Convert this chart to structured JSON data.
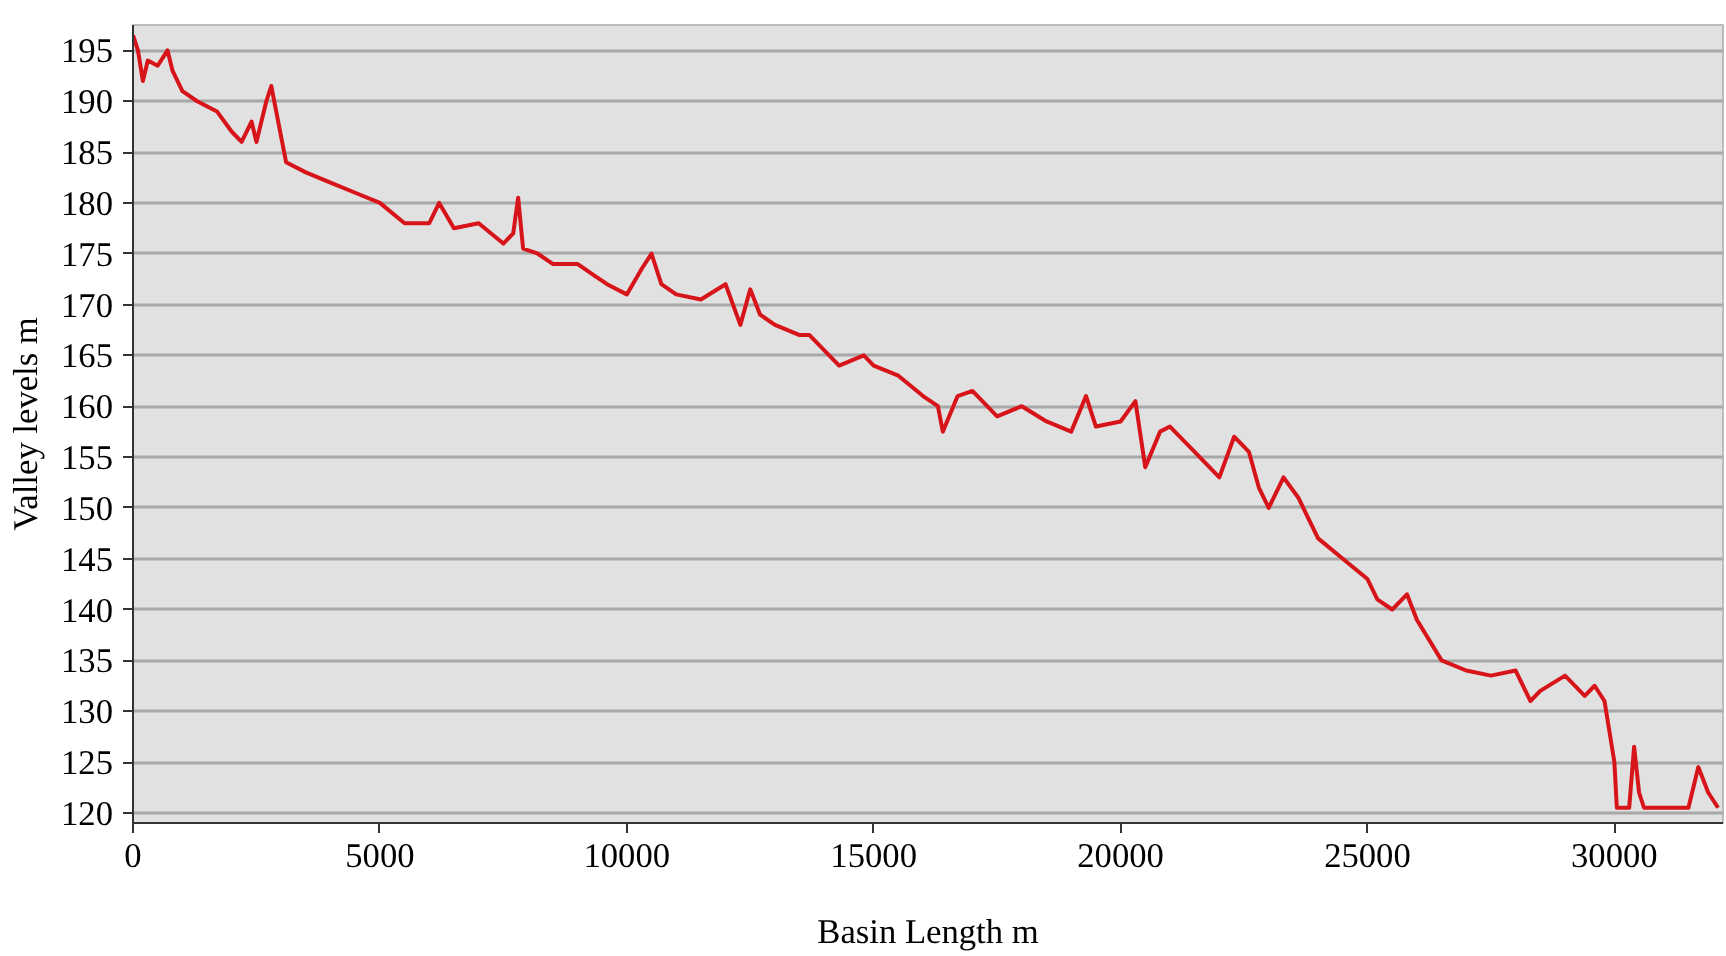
{
  "chart_data": {
    "type": "line",
    "xlabel": "Basin Length m",
    "ylabel": "Valley levels m",
    "xlim": [
      0,
      32200
    ],
    "ylim": [
      119,
      197.5
    ],
    "xticks": [
      0,
      5000,
      10000,
      15000,
      20000,
      25000,
      30000
    ],
    "yticks": [
      120,
      125,
      130,
      135,
      140,
      145,
      150,
      155,
      160,
      165,
      170,
      175,
      180,
      185,
      190,
      195
    ],
    "grid": "y",
    "marker": "none",
    "line_style": "solid",
    "x": [
      0,
      100,
      200,
      300,
      500,
      700,
      800,
      1000,
      1300,
      1700,
      2000,
      2200,
      2400,
      2500,
      2700,
      2800,
      2900,
      3100,
      3500,
      4000,
      4500,
      5000,
      5500,
      6000,
      6200,
      6500,
      7000,
      7500,
      7700,
      7800,
      7900,
      8200,
      8500,
      9000,
      9300,
      9600,
      10000,
      10300,
      10500,
      10700,
      11000,
      11500,
      12000,
      12300,
      12500,
      12700,
      13000,
      13500,
      13700,
      14000,
      14300,
      14800,
      15000,
      15500,
      16000,
      16300,
      16400,
      16700,
      17000,
      17500,
      18000,
      18500,
      19000,
      19300,
      19500,
      20000,
      20300,
      20500,
      20800,
      21000,
      21500,
      22000,
      22300,
      22600,
      22800,
      23000,
      23300,
      23600,
      23800,
      24000,
      24500,
      25000,
      25200,
      25500,
      25800,
      26000,
      26500,
      27000,
      27500,
      28000,
      28300,
      28500,
      29000,
      29400,
      29600,
      29800,
      30000,
      30050,
      30300,
      30400,
      30500,
      30600,
      31500,
      31700,
      31900,
      32100
    ],
    "series": [
      {
        "color": "#d7141a",
        "values": [
          196.5,
          195,
          192,
          194,
          193.5,
          195,
          193,
          191,
          190,
          189,
          187,
          186,
          188,
          186,
          190,
          191.5,
          189,
          184,
          183,
          182,
          181,
          180,
          178,
          178,
          180,
          177.5,
          178,
          176,
          177,
          180.5,
          175.5,
          175,
          174,
          174,
          173,
          172,
          171,
          173.5,
          175,
          172,
          171,
          170.5,
          172,
          168,
          171.5,
          169,
          168,
          167,
          167,
          165.5,
          164,
          165,
          164,
          163,
          161,
          160,
          157.5,
          161,
          161.5,
          159,
          160,
          158.5,
          157.5,
          161,
          158,
          158.5,
          160.5,
          154,
          157.5,
          158,
          155.5,
          153,
          157,
          155.5,
          152,
          150,
          153,
          151,
          149,
          147,
          145,
          143,
          141,
          140,
          141.5,
          139,
          135,
          134,
          133.5,
          134,
          131,
          132,
          133.5,
          131.5,
          132.5,
          131,
          125,
          120.5,
          120.5,
          126.5,
          122,
          120.5,
          120.5,
          124.5,
          122,
          120.5
        ]
      }
    ]
  }
}
